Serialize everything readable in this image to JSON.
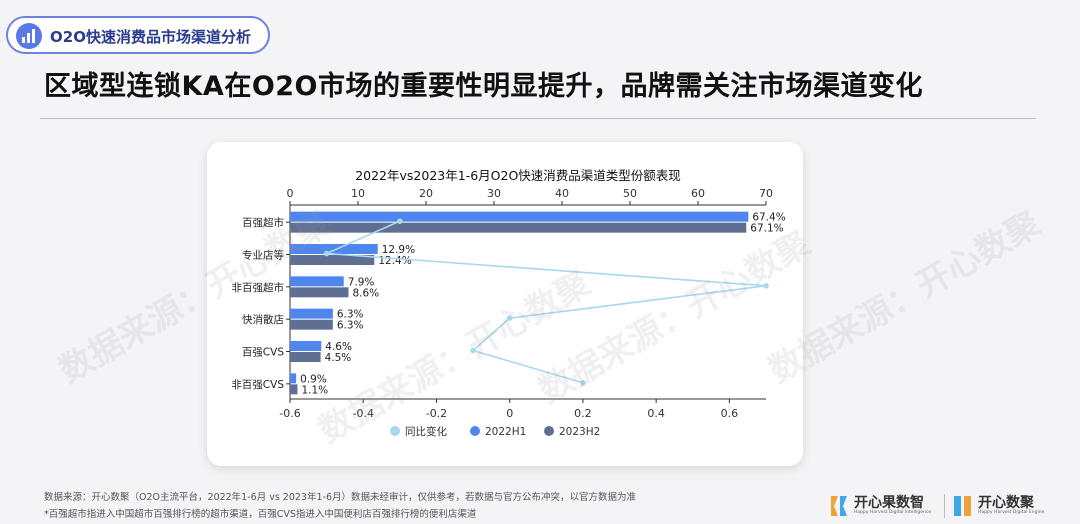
{
  "header": {
    "tag": "O2O快速消费品市场渠道分析",
    "headline": "区域型连锁KA在O2O市场的重要性明显提升，品牌需关注市场渠道变化"
  },
  "watermark": "数据来源：开心数聚",
  "footer": {
    "source": "数据来源：开心数聚（O2O主流平台，2022年1-6月 vs 2023年1-6月）数据未经审计，仅供参考，若数据与官方公布冲突，以官方数据为准",
    "note": "*百强超市指进入中国超市百强排行榜的超市渠道，百强CVS指进入中国便利店百强排行榜的便利店渠道"
  },
  "logos": {
    "primary_name": "开心果数智",
    "primary_en": "Happy Harvest Digital Intelligence",
    "secondary_name": "开心数聚",
    "secondary_en": "Happy Harvest Digital Engine"
  },
  "colors": {
    "h1": "#4f86ee",
    "h2": "#5f6f94",
    "yoy": "#a8d8ee",
    "accent": "#5a78e6"
  },
  "chart_data": {
    "type": "bar",
    "title": "2022年vs2023年1-6月O2O快速消费品渠道类型份额表现",
    "categories": [
      "百强超市",
      "专业店等",
      "非百强超市",
      "快消散店",
      "百强CVS",
      "非百强CVS"
    ],
    "series": [
      {
        "name": "2022H1",
        "values": [
          67.4,
          12.9,
          7.9,
          6.3,
          4.6,
          0.9
        ],
        "labels": [
          "67.4%",
          "12.9%",
          "7.9%",
          "6.3%",
          "4.6%",
          "0.9%"
        ]
      },
      {
        "name": "2023H2",
        "values": [
          67.1,
          12.4,
          8.6,
          6.3,
          4.5,
          1.1
        ],
        "labels": [
          "67.1%",
          "12.4%",
          "8.6%",
          "6.3%",
          "4.5%",
          "1.1%"
        ]
      },
      {
        "name": "同比变化",
        "type": "line",
        "values": [
          -0.3,
          -0.5,
          0.7,
          0.0,
          -0.1,
          0.2
        ]
      }
    ],
    "top_axis": {
      "min": 0,
      "max": 70,
      "ticks": [
        "0",
        "10",
        "20",
        "30",
        "40",
        "50",
        "60",
        "70"
      ]
    },
    "bottom_axis": {
      "min": -0.6,
      "max": 0.7,
      "ticks": [
        "-0.6",
        "-0.4",
        "-0.2",
        "0",
        "0.2",
        "0.4",
        "0.6"
      ]
    },
    "legend": [
      "同比变化",
      "2022H1",
      "2023H2"
    ],
    "legend_position": "bottom"
  }
}
